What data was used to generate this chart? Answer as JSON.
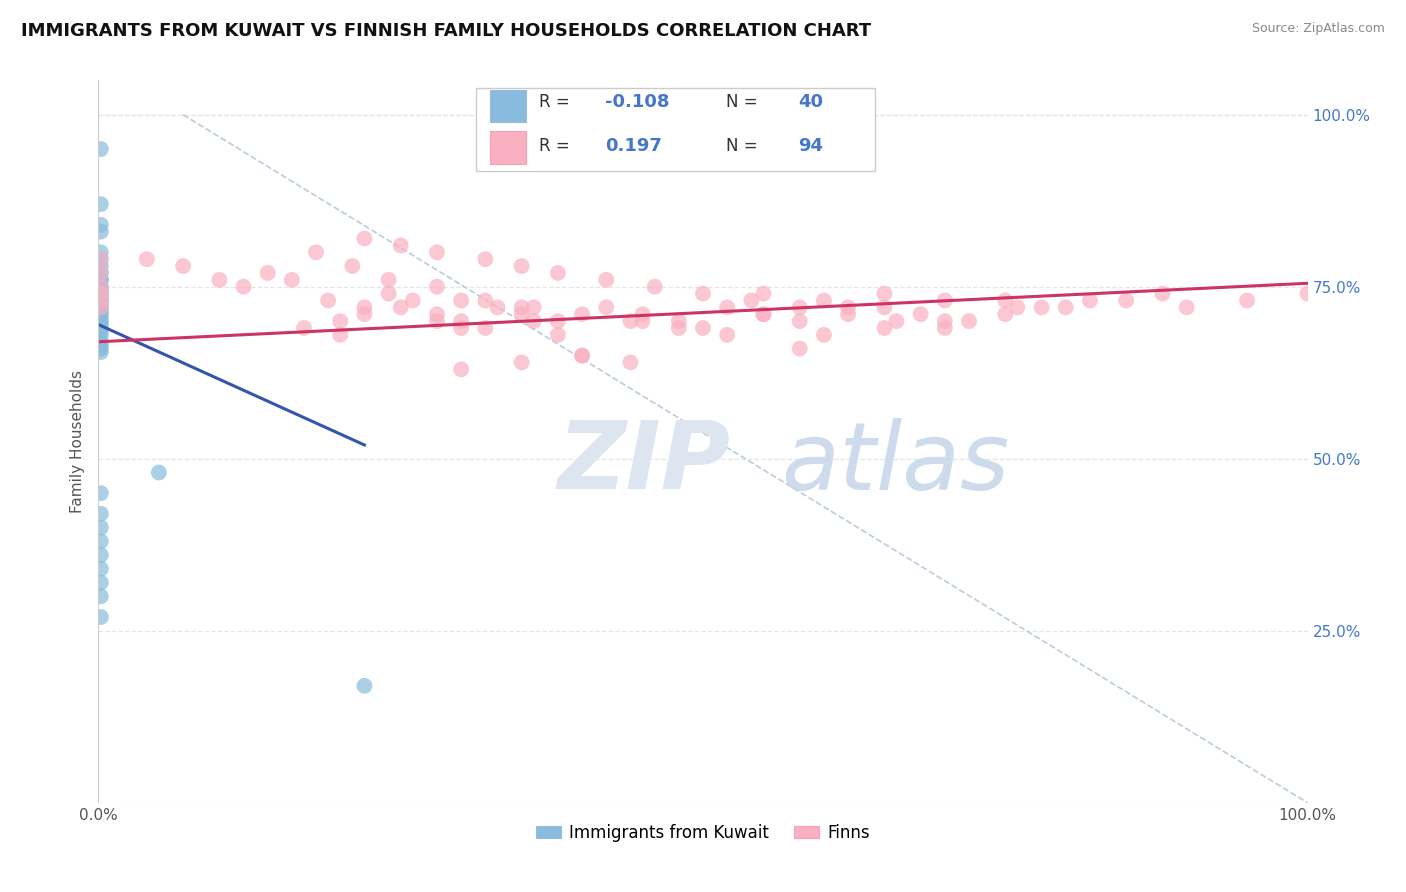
{
  "title": "IMMIGRANTS FROM KUWAIT VS FINNISH FAMILY HOUSEHOLDS CORRELATION CHART",
  "source": "Source: ZipAtlas.com",
  "ylabel": "Family Households",
  "ytick_values": [
    0.25,
    0.5,
    0.75,
    1.0
  ],
  "xlim": [
    0.0,
    1.0
  ],
  "ylim": [
    0.0,
    1.05
  ],
  "legend_entries": [
    {
      "label": "Immigrants from Kuwait",
      "R": "-0.108",
      "N": "40",
      "color": "#aaccee"
    },
    {
      "label": "Finns",
      "R": "0.197",
      "N": "94",
      "color": "#f9b8c8"
    }
  ],
  "blue_scatter": {
    "x": [
      0.002,
      0.002,
      0.002,
      0.002,
      0.002,
      0.002,
      0.002,
      0.002,
      0.002,
      0.002,
      0.002,
      0.002,
      0.002,
      0.002,
      0.002,
      0.002,
      0.002,
      0.002,
      0.002,
      0.002,
      0.002,
      0.002,
      0.002,
      0.002,
      0.002,
      0.002,
      0.002,
      0.002,
      0.002,
      0.002,
      0.002,
      0.002,
      0.002,
      0.002,
      0.002,
      0.002,
      0.002,
      0.002,
      0.05,
      0.22
    ],
    "y": [
      0.95,
      0.87,
      0.84,
      0.83,
      0.8,
      0.79,
      0.78,
      0.77,
      0.76,
      0.76,
      0.75,
      0.745,
      0.74,
      0.735,
      0.73,
      0.725,
      0.72,
      0.715,
      0.71,
      0.705,
      0.7,
      0.695,
      0.69,
      0.685,
      0.68,
      0.67,
      0.665,
      0.66,
      0.655,
      0.45,
      0.42,
      0.4,
      0.38,
      0.36,
      0.34,
      0.32,
      0.3,
      0.27,
      0.48,
      0.17
    ]
  },
  "pink_scatter": {
    "x": [
      0.002,
      0.002,
      0.002,
      0.002,
      0.002,
      0.002,
      0.04,
      0.07,
      0.1,
      0.12,
      0.14,
      0.16,
      0.19,
      0.22,
      0.24,
      0.26,
      0.28,
      0.3,
      0.17,
      0.2,
      0.22,
      0.25,
      0.28,
      0.32,
      0.35,
      0.38,
      0.42,
      0.45,
      0.48,
      0.52,
      0.55,
      0.58,
      0.62,
      0.4,
      0.44,
      0.38,
      0.33,
      0.36,
      0.3,
      0.18,
      0.21,
      0.24,
      0.28,
      0.32,
      0.36,
      0.4,
      0.44,
      0.48,
      0.52,
      0.3,
      0.35,
      0.65,
      0.68,
      0.72,
      0.75,
      0.78,
      0.55,
      0.6,
      0.65,
      0.7,
      0.22,
      0.25,
      0.28,
      0.32,
      0.35,
      0.38,
      0.42,
      0.46,
      0.5,
      0.54,
      0.58,
      0.62,
      0.66,
      0.7,
      0.75,
      0.8,
      0.85,
      0.9,
      0.95,
      1.0,
      0.45,
      0.5,
      0.55,
      0.2,
      0.58,
      0.3,
      0.35,
      0.4,
      0.6,
      0.65,
      0.7,
      0.76,
      0.82,
      0.88
    ],
    "y": [
      0.79,
      0.77,
      0.75,
      0.74,
      0.73,
      0.72,
      0.79,
      0.78,
      0.76,
      0.75,
      0.77,
      0.76,
      0.73,
      0.72,
      0.74,
      0.73,
      0.71,
      0.7,
      0.69,
      0.7,
      0.71,
      0.72,
      0.7,
      0.69,
      0.71,
      0.7,
      0.72,
      0.71,
      0.7,
      0.72,
      0.71,
      0.7,
      0.72,
      0.65,
      0.64,
      0.68,
      0.72,
      0.7,
      0.69,
      0.8,
      0.78,
      0.76,
      0.75,
      0.73,
      0.72,
      0.71,
      0.7,
      0.69,
      0.68,
      0.73,
      0.72,
      0.72,
      0.71,
      0.7,
      0.73,
      0.72,
      0.74,
      0.73,
      0.74,
      0.73,
      0.82,
      0.81,
      0.8,
      0.79,
      0.78,
      0.77,
      0.76,
      0.75,
      0.74,
      0.73,
      0.72,
      0.71,
      0.7,
      0.69,
      0.71,
      0.72,
      0.73,
      0.72,
      0.73,
      0.74,
      0.7,
      0.69,
      0.71,
      0.68,
      0.66,
      0.63,
      0.64,
      0.65,
      0.68,
      0.69,
      0.7,
      0.72,
      0.73,
      0.74
    ]
  },
  "blue_line": {
    "x": [
      0.0,
      0.22
    ],
    "y": [
      0.695,
      0.52
    ]
  },
  "pink_line": {
    "x": [
      0.0,
      1.0
    ],
    "y": [
      0.67,
      0.755
    ]
  },
  "diag_line": {
    "x": [
      0.07,
      1.0
    ],
    "y": [
      1.0,
      0.0
    ]
  },
  "blue_dot_color": "#88bbdd",
  "pink_dot_color": "#f9b0c0",
  "blue_line_color": "#3355aa",
  "pink_line_color": "#cc3366",
  "diag_color": "#bbccdd",
  "right_tick_color": "#4477cc",
  "grid_color": "#e5e5e5",
  "watermark_text": "ZIP",
  "watermark_text2": "atlas",
  "background_color": "#ffffff"
}
